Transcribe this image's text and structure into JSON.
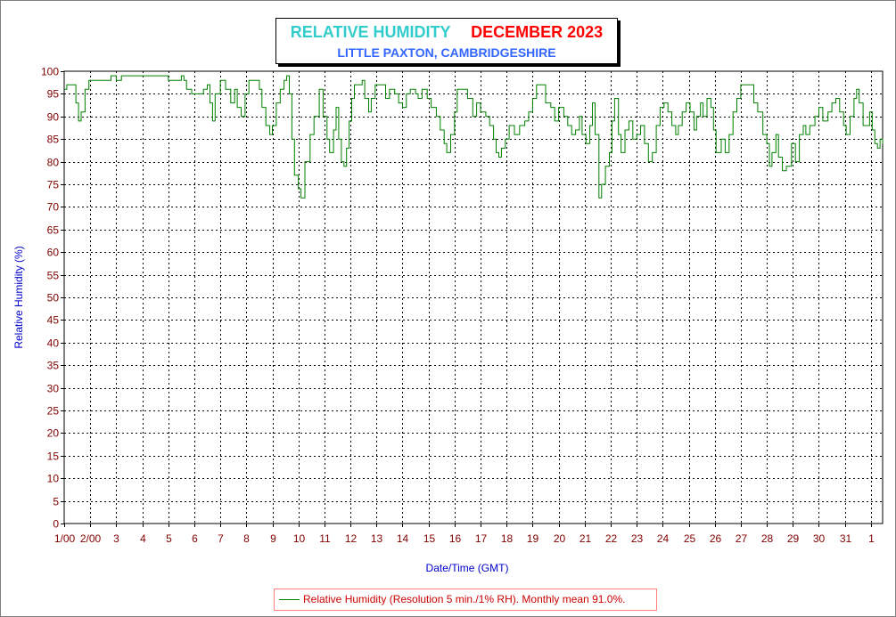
{
  "title": {
    "main": "RELATIVE HUMIDITY",
    "month": "DECEMBER 2023",
    "location": "LITTLE PAXTON, CAMBRIDGESHIRE"
  },
  "legend": {
    "label": "Relative Humidity (Resolution 5 min./1% RH). Monthly mean 91.0%."
  },
  "colors": {
    "series": "#008000",
    "tick_text": "#800000",
    "axis_title": "#0000cc",
    "title_main": "#33cccc",
    "title_month": "#ff0000",
    "subtitle": "#3366ff",
    "legend_border": "#ff8080"
  },
  "chart_data": {
    "type": "line",
    "title": "RELATIVE HUMIDITY DECEMBER 2023",
    "subtitle": "LITTLE PAXTON, CAMBRIDGESHIRE",
    "xlabel": "Date/Time (GMT)",
    "ylabel": "Relative Humidity (%)",
    "ylim": [
      0,
      100
    ],
    "xlim": [
      1,
      32.45
    ],
    "grid": true,
    "legend_position": "bottom",
    "y_ticks": [
      0,
      5,
      10,
      15,
      20,
      25,
      30,
      35,
      40,
      45,
      50,
      55,
      60,
      65,
      70,
      75,
      80,
      85,
      90,
      95,
      100
    ],
    "x_ticks": [
      {
        "day": 1,
        "label": "1/00"
      },
      {
        "day": 2,
        "label": "2/00"
      },
      {
        "day": 3,
        "label": "3"
      },
      {
        "day": 4,
        "label": "4"
      },
      {
        "day": 5,
        "label": "5"
      },
      {
        "day": 6,
        "label": "6"
      },
      {
        "day": 7,
        "label": "7"
      },
      {
        "day": 8,
        "label": "8"
      },
      {
        "day": 9,
        "label": "9"
      },
      {
        "day": 10,
        "label": "10"
      },
      {
        "day": 11,
        "label": "11"
      },
      {
        "day": 12,
        "label": "12"
      },
      {
        "day": 13,
        "label": "13"
      },
      {
        "day": 14,
        "label": "14"
      },
      {
        "day": 15,
        "label": "15"
      },
      {
        "day": 16,
        "label": "16"
      },
      {
        "day": 17,
        "label": "17"
      },
      {
        "day": 18,
        "label": "18"
      },
      {
        "day": 19,
        "label": "19"
      },
      {
        "day": 20,
        "label": "20"
      },
      {
        "day": 21,
        "label": "21"
      },
      {
        "day": 22,
        "label": "22"
      },
      {
        "day": 23,
        "label": "23"
      },
      {
        "day": 24,
        "label": "24"
      },
      {
        "day": 25,
        "label": "25"
      },
      {
        "day": 26,
        "label": "26"
      },
      {
        "day": 27,
        "label": "27"
      },
      {
        "day": 28,
        "label": "28"
      },
      {
        "day": 29,
        "label": "29"
      },
      {
        "day": 30,
        "label": "30"
      },
      {
        "day": 31,
        "label": "31"
      },
      {
        "day": 32,
        "label": "1"
      }
    ],
    "series": [
      {
        "name": "Relative Humidity (Resolution 5 min./1% RH). Monthly mean 91.0%.",
        "points": [
          [
            1.0,
            96
          ],
          [
            1.1,
            97
          ],
          [
            1.3,
            97
          ],
          [
            1.45,
            93
          ],
          [
            1.55,
            89
          ],
          [
            1.65,
            91
          ],
          [
            1.8,
            96
          ],
          [
            1.95,
            98
          ],
          [
            2.3,
            98
          ],
          [
            2.6,
            98
          ],
          [
            2.8,
            99
          ],
          [
            3.0,
            98
          ],
          [
            3.2,
            99
          ],
          [
            3.6,
            99
          ],
          [
            4.0,
            99
          ],
          [
            4.5,
            99
          ],
          [
            4.9,
            99
          ],
          [
            5.0,
            98
          ],
          [
            5.4,
            98
          ],
          [
            5.5,
            99
          ],
          [
            5.6,
            98
          ],
          [
            5.7,
            96
          ],
          [
            5.9,
            95
          ],
          [
            6.2,
            95
          ],
          [
            6.35,
            96
          ],
          [
            6.5,
            97
          ],
          [
            6.6,
            93
          ],
          [
            6.7,
            89
          ],
          [
            6.8,
            95
          ],
          [
            7.0,
            98
          ],
          [
            7.2,
            96
          ],
          [
            7.4,
            93
          ],
          [
            7.55,
            96
          ],
          [
            7.65,
            92
          ],
          [
            7.8,
            90
          ],
          [
            7.95,
            95
          ],
          [
            8.1,
            98
          ],
          [
            8.4,
            98
          ],
          [
            8.5,
            96
          ],
          [
            8.6,
            92
          ],
          [
            8.75,
            88
          ],
          [
            8.9,
            86
          ],
          [
            9.0,
            88
          ],
          [
            9.15,
            93
          ],
          [
            9.3,
            96
          ],
          [
            9.45,
            98
          ],
          [
            9.55,
            99
          ],
          [
            9.65,
            95
          ],
          [
            9.75,
            85
          ],
          [
            9.85,
            77
          ],
          [
            10.0,
            74
          ],
          [
            10.1,
            72
          ],
          [
            10.25,
            80
          ],
          [
            10.45,
            86
          ],
          [
            10.6,
            90
          ],
          [
            10.8,
            96
          ],
          [
            10.95,
            90
          ],
          [
            11.1,
            85
          ],
          [
            11.2,
            82
          ],
          [
            11.35,
            87
          ],
          [
            11.45,
            92
          ],
          [
            11.55,
            85
          ],
          [
            11.65,
            80
          ],
          [
            11.75,
            79
          ],
          [
            11.85,
            83
          ],
          [
            11.95,
            89
          ],
          [
            12.05,
            94
          ],
          [
            12.15,
            97
          ],
          [
            12.35,
            97
          ],
          [
            12.45,
            98
          ],
          [
            12.55,
            94
          ],
          [
            12.7,
            91
          ],
          [
            12.8,
            94
          ],
          [
            12.95,
            97
          ],
          [
            13.15,
            97
          ],
          [
            13.35,
            94
          ],
          [
            13.5,
            96
          ],
          [
            13.7,
            95
          ],
          [
            13.85,
            93
          ],
          [
            14.0,
            92
          ],
          [
            14.15,
            95
          ],
          [
            14.3,
            96
          ],
          [
            14.5,
            95
          ],
          [
            14.6,
            94
          ],
          [
            14.75,
            96
          ],
          [
            14.95,
            94
          ],
          [
            15.1,
            92
          ],
          [
            15.3,
            90
          ],
          [
            15.45,
            87
          ],
          [
            15.6,
            84
          ],
          [
            15.7,
            82
          ],
          [
            15.85,
            86
          ],
          [
            16.0,
            91
          ],
          [
            16.1,
            96
          ],
          [
            16.35,
            96
          ],
          [
            16.5,
            94
          ],
          [
            16.7,
            90
          ],
          [
            16.85,
            93
          ],
          [
            17.0,
            91
          ],
          [
            17.2,
            90
          ],
          [
            17.35,
            88
          ],
          [
            17.5,
            85
          ],
          [
            17.6,
            82
          ],
          [
            17.7,
            81
          ],
          [
            17.8,
            83
          ],
          [
            17.95,
            85
          ],
          [
            18.1,
            88
          ],
          [
            18.3,
            86
          ],
          [
            18.5,
            88
          ],
          [
            18.7,
            89
          ],
          [
            18.85,
            91
          ],
          [
            19.0,
            94
          ],
          [
            19.15,
            97
          ],
          [
            19.35,
            97
          ],
          [
            19.5,
            93
          ],
          [
            19.7,
            92
          ],
          [
            19.85,
            89
          ],
          [
            20.0,
            92
          ],
          [
            20.2,
            90
          ],
          [
            20.35,
            88
          ],
          [
            20.5,
            86
          ],
          [
            20.65,
            87
          ],
          [
            20.8,
            90
          ],
          [
            20.9,
            86
          ],
          [
            21.05,
            84
          ],
          [
            21.2,
            88
          ],
          [
            21.3,
            93
          ],
          [
            21.4,
            86
          ],
          [
            21.55,
            72
          ],
          [
            21.65,
            75
          ],
          [
            21.8,
            79
          ],
          [
            21.95,
            82
          ],
          [
            22.05,
            89
          ],
          [
            22.15,
            94
          ],
          [
            22.3,
            86
          ],
          [
            22.4,
            82
          ],
          [
            22.55,
            87
          ],
          [
            22.7,
            89
          ],
          [
            22.85,
            85
          ],
          [
            23.0,
            86
          ],
          [
            23.15,
            88
          ],
          [
            23.3,
            84
          ],
          [
            23.45,
            80
          ],
          [
            23.6,
            82
          ],
          [
            23.75,
            88
          ],
          [
            23.9,
            92
          ],
          [
            24.05,
            93
          ],
          [
            24.2,
            91
          ],
          [
            24.35,
            88
          ],
          [
            24.5,
            86
          ],
          [
            24.6,
            88
          ],
          [
            24.75,
            91
          ],
          [
            24.9,
            93
          ],
          [
            25.05,
            91
          ],
          [
            25.2,
            87
          ],
          [
            25.3,
            90
          ],
          [
            25.45,
            93
          ],
          [
            25.55,
            90
          ],
          [
            25.7,
            94
          ],
          [
            25.85,
            92
          ],
          [
            25.95,
            87
          ],
          [
            26.05,
            82
          ],
          [
            26.25,
            85
          ],
          [
            26.4,
            82
          ],
          [
            26.55,
            86
          ],
          [
            26.7,
            91
          ],
          [
            26.85,
            94
          ],
          [
            27.0,
            97
          ],
          [
            27.2,
            97
          ],
          [
            27.35,
            97
          ],
          [
            27.5,
            93
          ],
          [
            27.65,
            91
          ],
          [
            27.85,
            86
          ],
          [
            28.0,
            84
          ],
          [
            28.1,
            79
          ],
          [
            28.2,
            82
          ],
          [
            28.35,
            86
          ],
          [
            28.45,
            81
          ],
          [
            28.6,
            78
          ],
          [
            28.75,
            79
          ],
          [
            28.95,
            84
          ],
          [
            29.1,
            80
          ],
          [
            29.25,
            86
          ],
          [
            29.4,
            88
          ],
          [
            29.5,
            86
          ],
          [
            29.65,
            88
          ],
          [
            29.85,
            90
          ],
          [
            30.0,
            92
          ],
          [
            30.15,
            89
          ],
          [
            30.35,
            91
          ],
          [
            30.5,
            93
          ],
          [
            30.65,
            94
          ],
          [
            30.8,
            91
          ],
          [
            30.95,
            88
          ],
          [
            31.05,
            86
          ],
          [
            31.2,
            90
          ],
          [
            31.35,
            94
          ],
          [
            31.45,
            96
          ],
          [
            31.55,
            93
          ],
          [
            31.7,
            88
          ],
          [
            31.85,
            88
          ],
          [
            31.95,
            91
          ],
          [
            32.05,
            87
          ],
          [
            32.15,
            84
          ],
          [
            32.25,
            83
          ],
          [
            32.35,
            85
          ],
          [
            32.45,
            84
          ]
        ]
      }
    ]
  }
}
